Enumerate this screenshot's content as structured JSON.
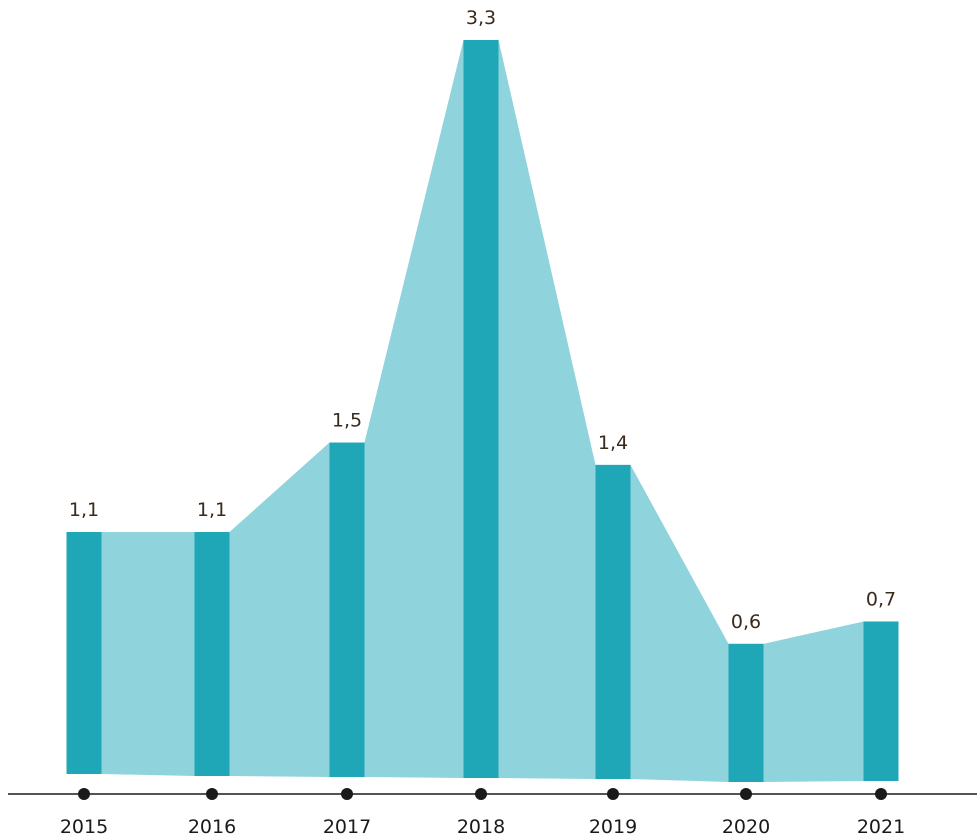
{
  "chart_data": {
    "type": "bar",
    "title": "",
    "xlabel": "",
    "ylabel": "",
    "categories": [
      "2015",
      "2016",
      "2017",
      "2018",
      "2019",
      "2020",
      "2021"
    ],
    "values": [
      1.1,
      1.1,
      1.5,
      3.3,
      1.4,
      0.6,
      0.7
    ],
    "value_labels": [
      "1,1",
      "1,1",
      "1,5",
      "3,3",
      "1,4",
      "0,6",
      "0,7"
    ],
    "ylim": [
      0,
      3.3
    ],
    "grid": false,
    "legend": "none",
    "colors": {
      "bar": "#1fa7b8",
      "area": "#8fd3dd",
      "axis": "#1a1a1a",
      "value_text": "#3a2a1c"
    }
  }
}
